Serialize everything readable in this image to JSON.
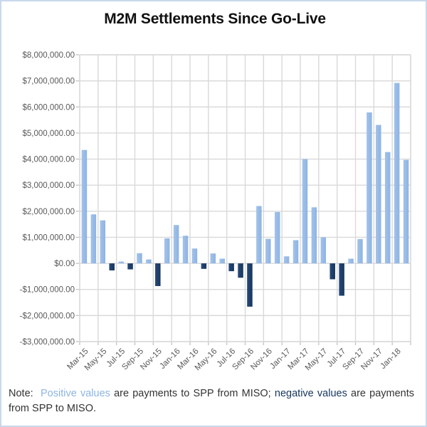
{
  "chart_data": {
    "type": "bar",
    "title": "M2M Settlements Since Go-Live",
    "xlabel": "",
    "ylabel": "",
    "ylim": [
      -3000000,
      8000000
    ],
    "ytick_step": 1000000,
    "grid": true,
    "legend": "none",
    "positive_color": "#8db4e2",
    "negative_color": "#17365d",
    "gridline_color": "#d9d9d9",
    "categories": [
      "Mar-15",
      "Apr-15",
      "May-15",
      "Jun-15",
      "Jul-15",
      "Aug-15",
      "Sep-15",
      "Oct-15",
      "Nov-15",
      "Dec-15",
      "Jan-16",
      "Feb-16",
      "Mar-16",
      "Apr-16",
      "May-16",
      "Jun-16",
      "Jul-16",
      "Aug-16",
      "Sep-16",
      "Oct-16",
      "Nov-16",
      "Dec-16",
      "Jan-17",
      "Feb-17",
      "Mar-17",
      "Apr-17",
      "May-17",
      "Jun-17",
      "Jul-17",
      "Aug-17",
      "Sep-17",
      "Oct-17",
      "Nov-17",
      "Dec-17",
      "Jan-18",
      "Feb-18"
    ],
    "values": [
      4350000,
      1880000,
      1650000,
      -270000,
      70000,
      -230000,
      390000,
      150000,
      -870000,
      960000,
      1470000,
      1060000,
      570000,
      -210000,
      380000,
      180000,
      -300000,
      -550000,
      -1660000,
      2200000,
      940000,
      1970000,
      270000,
      890000,
      4000000,
      2150000,
      1000000,
      -610000,
      -1240000,
      180000,
      930000,
      5790000,
      5310000,
      4270000,
      6920000,
      3970000
    ],
    "ytick_labels": [
      "$8,000,000.00",
      "$7,000,000.00",
      "$6,000,000.00",
      "$5,000,000.00",
      "$4,000,000.00",
      "$3,000,000.00",
      "$2,000,000.00",
      "$1,000,000.00",
      "$0.00",
      "-$1,000,000.00",
      "-$2,000,000.00",
      "-$3,000,000.00"
    ],
    "xtick_labels": [
      "Mar-15",
      "May-15",
      "Jul-15",
      "Sep-15",
      "Nov-15",
      "Jan-16",
      "Mar-16",
      "May-16",
      "Jul-16",
      "Sep-16",
      "Nov-16",
      "Jan-17",
      "Mar-17",
      "May-17",
      "Jul-17",
      "Sep-17",
      "Nov-17",
      "Jan-18"
    ]
  },
  "note": {
    "prefix": "Note:  ",
    "positive": "Positive values",
    "mid1": " are payments to SPP from MISO; ",
    "negative": "negative values",
    "mid2": " are payments from SPP to MISO."
  }
}
